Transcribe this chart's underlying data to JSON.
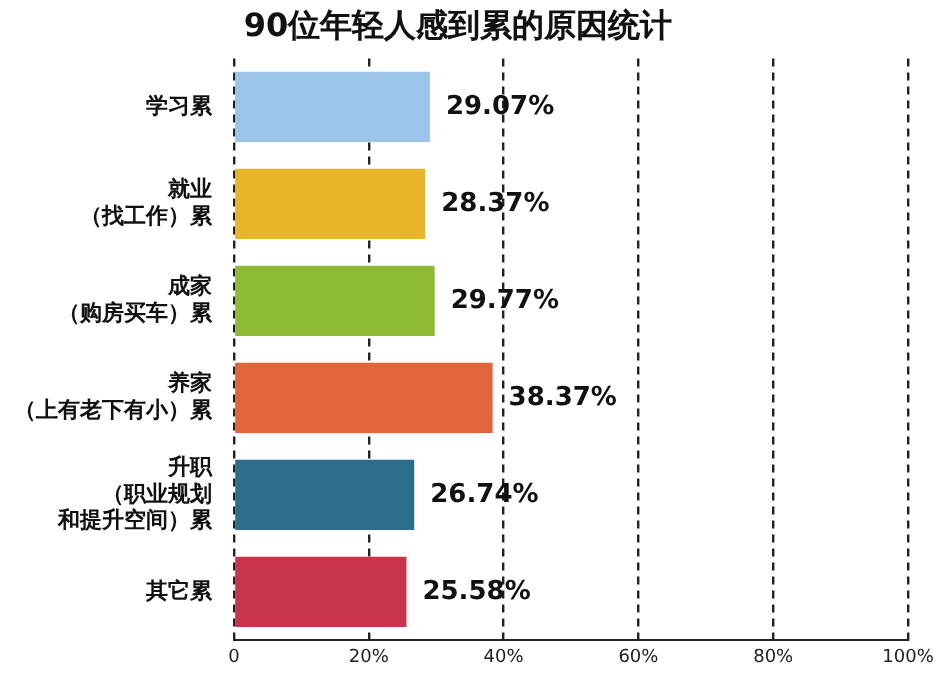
{
  "chart_data": {
    "type": "bar",
    "orientation": "horizontal",
    "title": "90位年轻人感到累的原因统计",
    "categories": [
      "学习累",
      "就业（找工作）累",
      "成家（购房买车）累",
      "养家（上有老下有小）累",
      "升职（职业规划和提升空间）累",
      "其它累"
    ],
    "values": [
      29.07,
      28.37,
      29.77,
      38.37,
      26.74,
      25.58
    ],
    "value_labels": [
      "29.07%",
      "28.37%",
      "29.77%",
      "38.37%",
      "26.74%",
      "25.58%"
    ],
    "colors": [
      "#9cc4e8",
      "#e8b428",
      "#8cbc34",
      "#e0643c",
      "#2c6e8c",
      "#c8344c"
    ],
    "xlim": [
      0,
      100
    ],
    "xticks": [
      0,
      {
        "value": 20,
        "label": "20%"
      },
      {
        "value": 40,
        "label": "40%"
      },
      {
        "value": 60,
        "label": "60%"
      },
      {
        "value": 80,
        "label": "80%"
      },
      {
        "value": 100,
        "label": "100%"
      }
    ],
    "grid": "x",
    "line_style": "dashed",
    "legend": false
  }
}
